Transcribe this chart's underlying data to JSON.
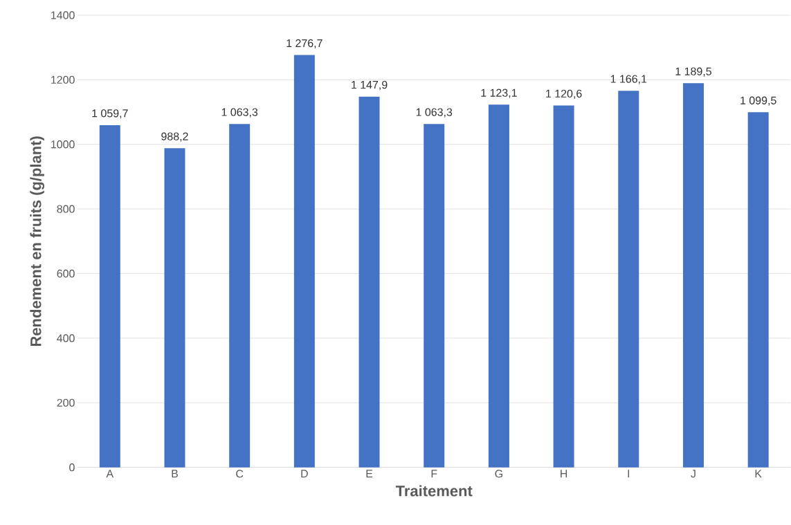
{
  "chart_data": {
    "type": "bar",
    "xlabel": "Traitement",
    "ylabel": "Rendement en fruits (g/plant)",
    "categories": [
      "A",
      "B",
      "C",
      "D",
      "E",
      "F",
      "G",
      "H",
      "I",
      "J",
      "K"
    ],
    "values": [
      1059.7,
      988.2,
      1063.3,
      1276.7,
      1147.9,
      1063.3,
      1123.1,
      1120.6,
      1166.1,
      1189.5,
      1099.5
    ],
    "value_labels": [
      "1 059,7",
      "988,2",
      "1 063,3",
      "1 276,7",
      "1 147,9",
      "1 063,3",
      "1 123,1",
      "1 120,6",
      "1 166,1",
      "1 189,5",
      "1 099,5"
    ],
    "color": "#4472c4",
    "ylim": [
      0,
      1400
    ],
    "yticks": [
      0,
      200,
      400,
      600,
      800,
      1000,
      1200,
      1400
    ],
    "grid": "y"
  }
}
